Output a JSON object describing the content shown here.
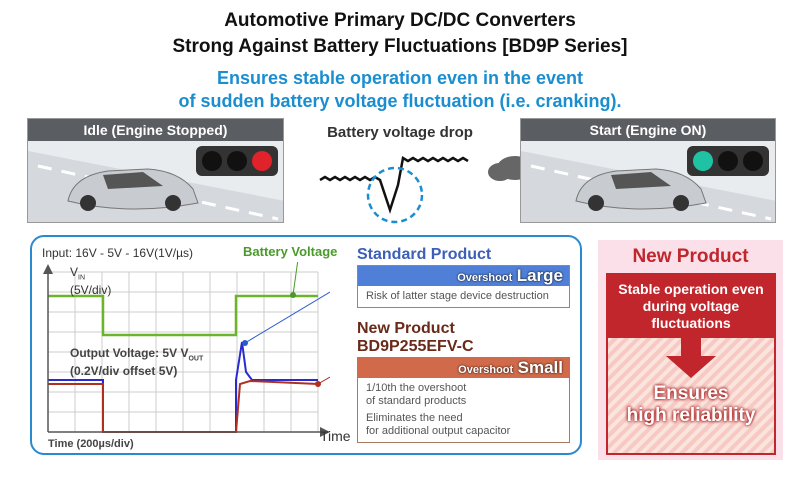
{
  "header": {
    "title_line1": "Automotive Primary DC/DC Converters",
    "title_line2": "Strong Against Battery Fluctuations [BD9P Series]",
    "subtitle_line1": "Ensures stable operation even in the event",
    "subtitle_line2": "of sudden battery voltage fluctuation (i.e. cranking)."
  },
  "scenes": {
    "idle": "Idle (Engine Stopped)",
    "start": "Start (Engine ON)",
    "drop": "Battery voltage drop"
  },
  "scope": {
    "input": "Input: 16V - 5V - 16V(1V/µs)",
    "battery": "Battery Voltage",
    "vin": "V",
    "vin_sub": "IN",
    "vin_scale": "(5V/div)",
    "vout": "Output Voltage: 5V V",
    "vout_sub": "OUT",
    "vout_scale": "(0.2V/div offset 5V)",
    "time_axis": "Time",
    "time_scale": "Time (200µs/div)"
  },
  "standard": {
    "title": "Standard Product",
    "overshoot": "Overshoot",
    "level": "Large",
    "desc": "Risk of latter stage device destruction"
  },
  "newprod": {
    "title1": "New Product",
    "title2": "BD9P255EFV-C",
    "overshoot": "Overshoot",
    "level": "Small",
    "desc1a": "1/10th the overshoot",
    "desc1b": "of standard products",
    "desc2a": "Eliminates the need",
    "desc2b": "for additional output capacitor"
  },
  "side": {
    "title": "New Product",
    "box1": "Stable operation even during voltage fluctuations",
    "box2a": "Ensures",
    "box2b": "high reliability"
  },
  "colors": {
    "blue": "#1b8ed0",
    "green": "#6bb52a",
    "red": "#c0262b",
    "std_blue": "#3d6fc8",
    "new_red": "#d06a4a"
  }
}
